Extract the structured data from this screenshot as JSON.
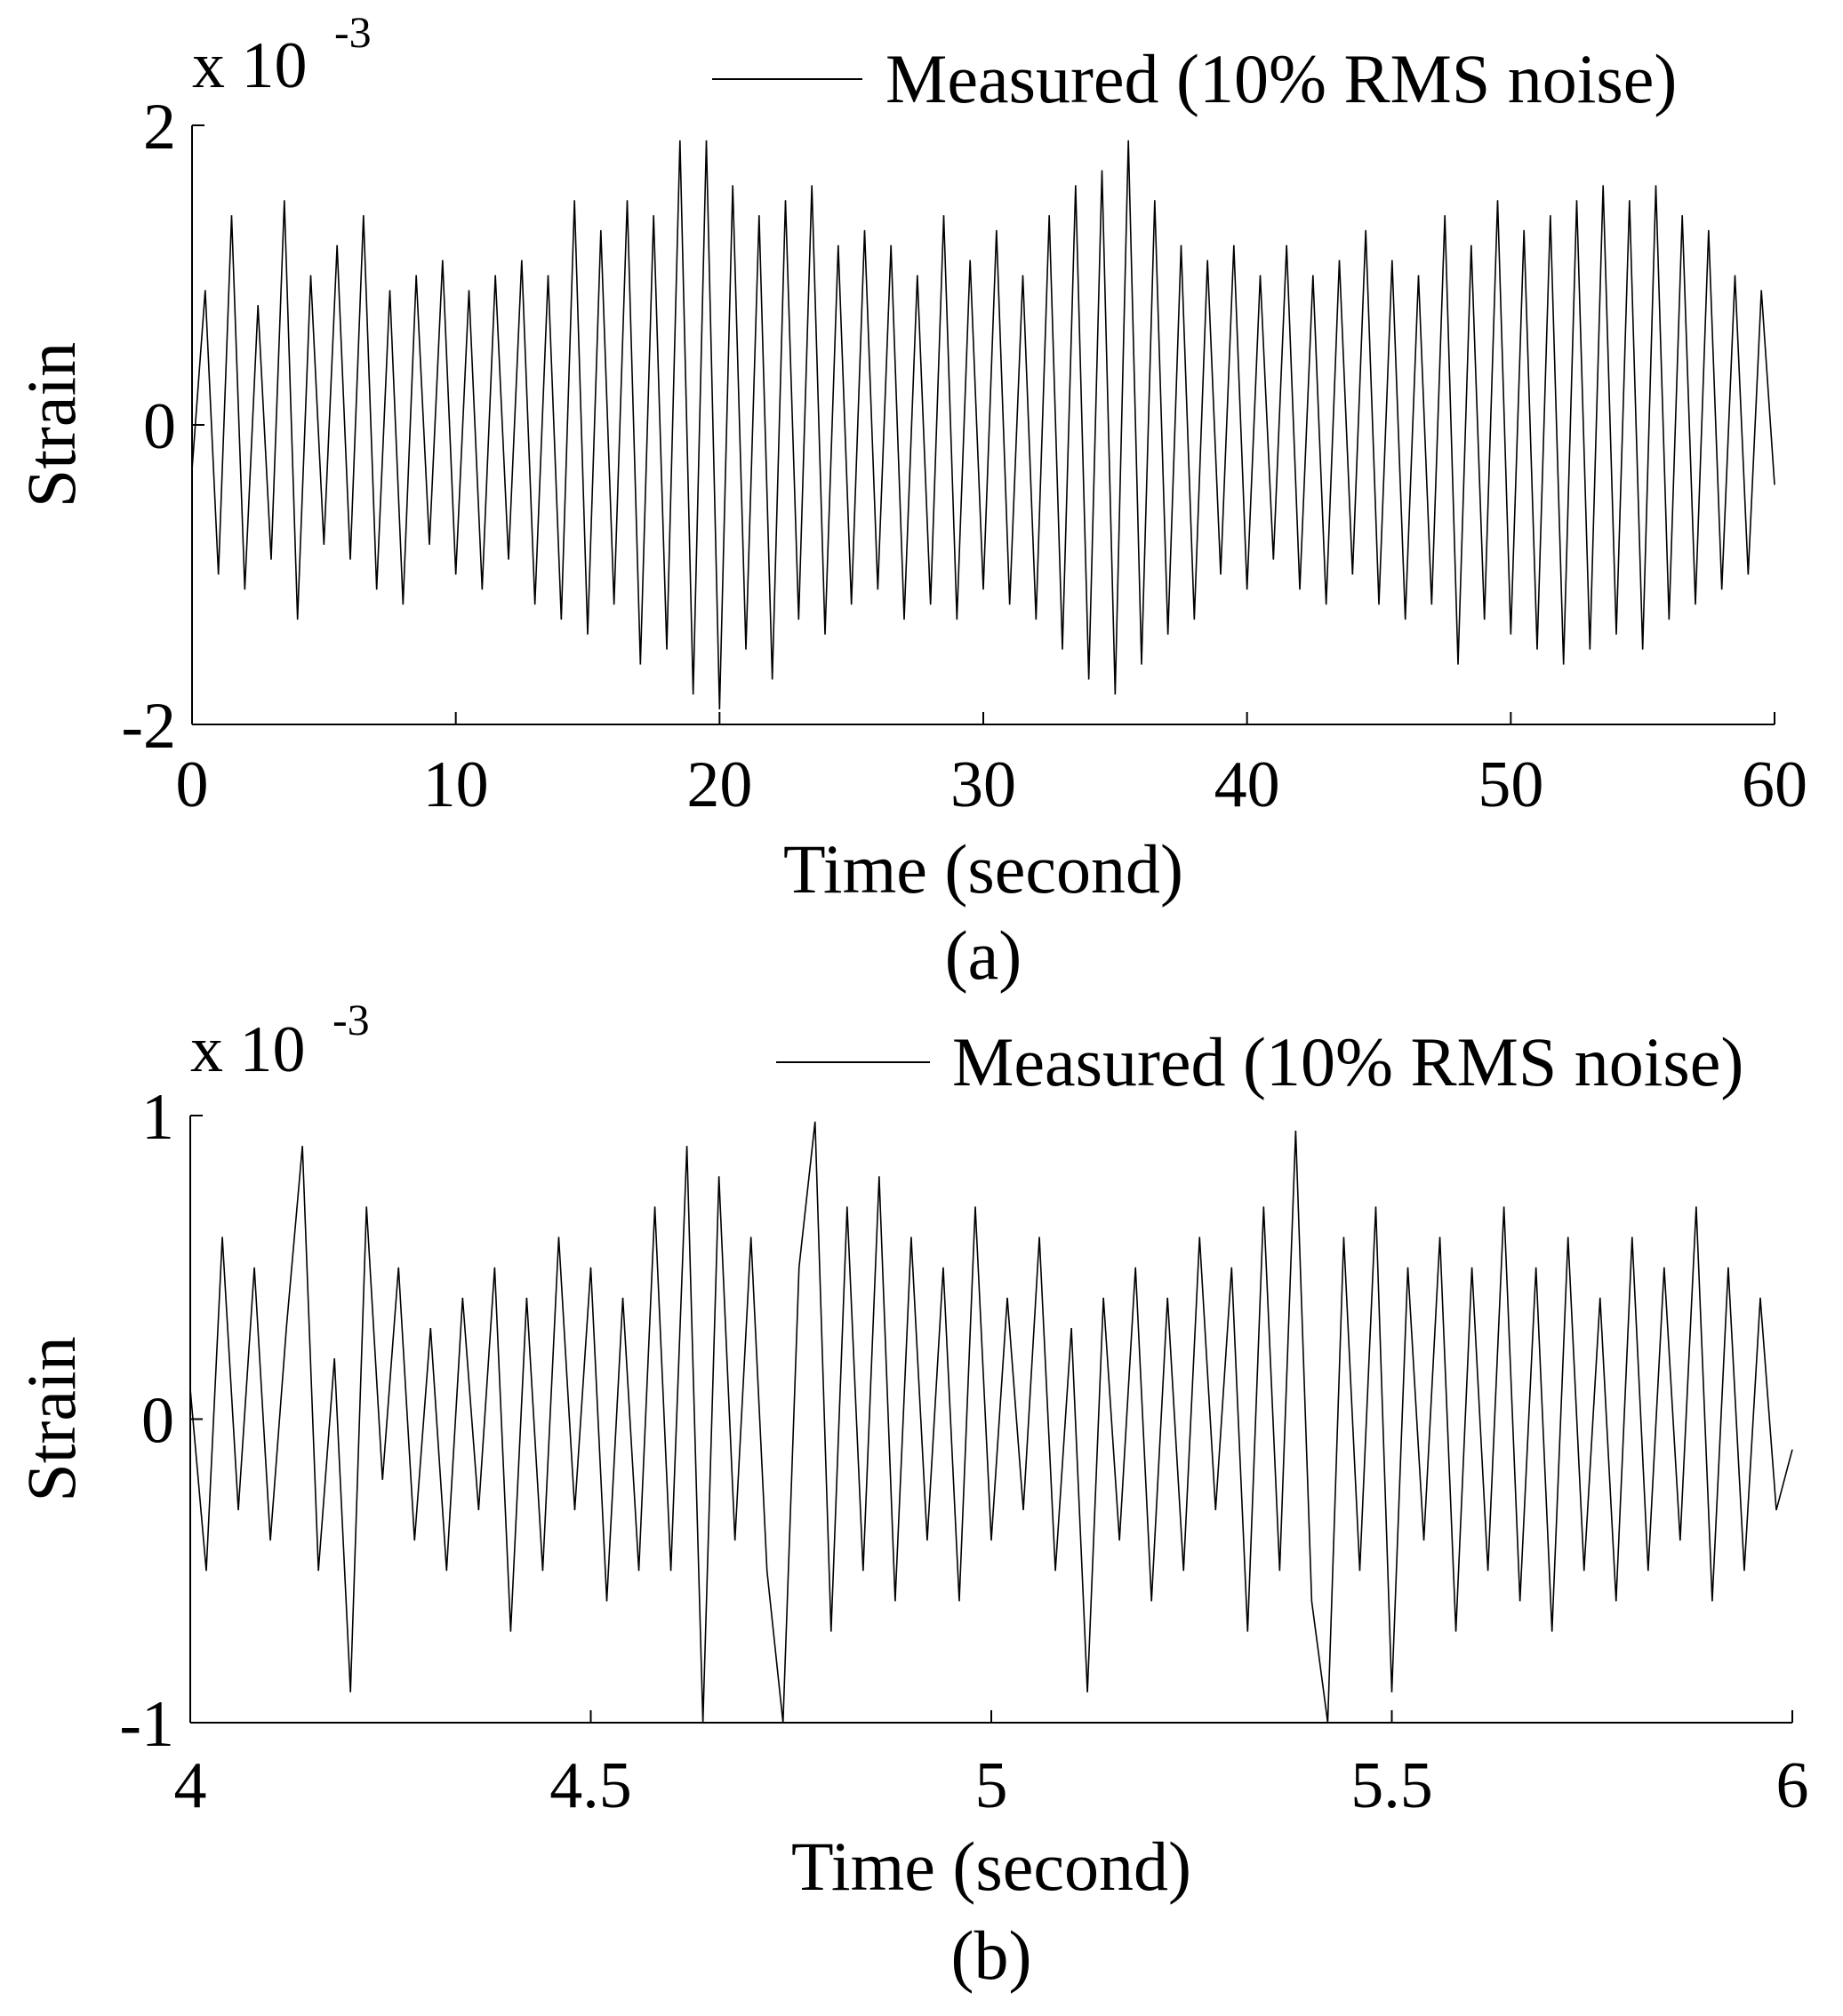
{
  "chart_data": [
    {
      "type": "line",
      "caption": "(a)",
      "xlabel": "Time (second)",
      "ylabel": "Strain",
      "multiplier": "x 10",
      "multiplier_exponent": "-3",
      "legend": "top-right",
      "xlim": [
        0,
        60
      ],
      "ylim": [
        -2,
        2
      ],
      "xticks": [
        0,
        10,
        20,
        30,
        40,
        50,
        60
      ],
      "yticks": [
        -2,
        0,
        2
      ],
      "x": [
        0,
        0.5,
        1,
        1.5,
        2,
        2.5,
        3,
        3.5,
        4,
        4.5,
        5,
        5.5,
        6,
        6.5,
        7,
        7.5,
        8,
        8.5,
        9,
        9.5,
        10,
        10.5,
        11,
        11.5,
        12,
        12.5,
        13,
        13.5,
        14,
        14.5,
        15,
        15.5,
        16,
        16.5,
        17,
        17.5,
        18,
        18.5,
        19,
        19.5,
        20,
        20.5,
        21,
        21.5,
        22,
        22.5,
        23,
        23.5,
        24,
        24.5,
        25,
        25.5,
        26,
        26.5,
        27,
        27.5,
        28,
        28.5,
        29,
        29.5,
        30,
        30.5,
        31,
        31.5,
        32,
        32.5,
        33,
        33.5,
        34,
        34.5,
        35,
        35.5,
        36,
        36.5,
        37,
        37.5,
        38,
        38.5,
        39,
        39.5,
        40,
        40.5,
        41,
        41.5,
        42,
        42.5,
        43,
        43.5,
        44,
        44.5,
        45,
        45.5,
        46,
        46.5,
        47,
        47.5,
        48,
        48.5,
        49,
        49.5,
        50,
        50.5,
        51,
        51.5,
        52,
        52.5,
        53,
        53.5,
        54,
        54.5,
        55,
        55.5,
        56,
        56.5,
        57,
        57.5,
        58,
        58.5,
        59,
        59.5,
        60
      ],
      "series": [
        {
          "name": "Measured (10% RMS noise)",
          "color": "#000000",
          "values": [
            -0.3,
            0.9,
            -1.0,
            1.4,
            -1.1,
            0.8,
            -0.9,
            1.5,
            -1.3,
            1.0,
            -0.8,
            1.2,
            -0.9,
            1.4,
            -1.1,
            0.9,
            -1.2,
            1.0,
            -0.8,
            1.1,
            -1.0,
            0.9,
            -1.1,
            1.0,
            -0.9,
            1.1,
            -1.2,
            1.0,
            -1.3,
            1.5,
            -1.4,
            1.3,
            -1.2,
            1.5,
            -1.6,
            1.4,
            -1.5,
            1.9,
            -1.8,
            1.9,
            -1.9,
            1.6,
            -1.5,
            1.4,
            -1.7,
            1.5,
            -1.3,
            1.6,
            -1.4,
            1.2,
            -1.2,
            1.3,
            -1.1,
            1.2,
            -1.3,
            1.0,
            -1.2,
            1.4,
            -1.3,
            1.1,
            -1.1,
            1.3,
            -1.2,
            1.0,
            -1.3,
            1.4,
            -1.5,
            1.6,
            -1.7,
            1.7,
            -1.8,
            1.9,
            -1.6,
            1.5,
            -1.4,
            1.2,
            -1.3,
            1.1,
            -1.0,
            1.2,
            -1.1,
            1.0,
            -0.9,
            1.2,
            -1.1,
            1.0,
            -1.2,
            1.1,
            -1.0,
            1.3,
            -1.2,
            1.1,
            -1.3,
            1.0,
            -1.2,
            1.4,
            -1.6,
            1.2,
            -1.3,
            1.5,
            -1.4,
            1.3,
            -1.5,
            1.4,
            -1.6,
            1.5,
            -1.5,
            1.6,
            -1.4,
            1.5,
            -1.5,
            1.6,
            -1.3,
            1.4,
            -1.2,
            1.3,
            -1.1,
            1.0,
            -1.0,
            0.9,
            -0.4
          ]
        }
      ]
    },
    {
      "type": "line",
      "caption": "(b)",
      "xlabel": "Time (second)",
      "ylabel": "Strain",
      "multiplier": "x 10",
      "multiplier_exponent": "-3",
      "legend": "top-right",
      "xlim": [
        4,
        6
      ],
      "ylim": [
        -1,
        1
      ],
      "xticks": [
        4,
        4.5,
        5,
        5.5,
        6
      ],
      "yticks": [
        -1,
        0,
        1
      ],
      "x": [
        4,
        4.02,
        4.04,
        4.06,
        4.08,
        4.1,
        4.12,
        4.14,
        4.16,
        4.18,
        4.2,
        4.22,
        4.24,
        4.26,
        4.28,
        4.3,
        4.32,
        4.34,
        4.36,
        4.38,
        4.4,
        4.42,
        4.44,
        4.46,
        4.48,
        4.5,
        4.52,
        4.54,
        4.56,
        4.58,
        4.6,
        4.62,
        4.64,
        4.66,
        4.68,
        4.7,
        4.72,
        4.74,
        4.76,
        4.78,
        4.8,
        4.82,
        4.84,
        4.86,
        4.88,
        4.9,
        4.92,
        4.94,
        4.96,
        4.98,
        5,
        5.02,
        5.04,
        5.06,
        5.08,
        5.1,
        5.12,
        5.14,
        5.16,
        5.18,
        5.2,
        5.22,
        5.24,
        5.26,
        5.28,
        5.3,
        5.32,
        5.34,
        5.36,
        5.38,
        5.4,
        5.42,
        5.44,
        5.46,
        5.48,
        5.5,
        5.52,
        5.54,
        5.56,
        5.58,
        5.6,
        5.62,
        5.64,
        5.66,
        5.68,
        5.7,
        5.72,
        5.74,
        5.76,
        5.78,
        5.8,
        5.82,
        5.84,
        5.86,
        5.88,
        5.9,
        5.92,
        5.94,
        5.96,
        5.98,
        6
      ],
      "series": [
        {
          "name": "Measured (10% RMS noise)",
          "color": "#000000",
          "values": [
            0.1,
            -0.5,
            0.6,
            -0.3,
            0.5,
            -0.4,
            0.3,
            0.9,
            -0.5,
            0.2,
            -0.9,
            0.7,
            -0.2,
            0.5,
            -0.4,
            0.3,
            -0.5,
            0.4,
            -0.3,
            0.5,
            -0.7,
            0.4,
            -0.5,
            0.6,
            -0.3,
            0.5,
            -0.6,
            0.4,
            -0.5,
            0.7,
            -0.5,
            0.9,
            -1.0,
            0.8,
            -0.4,
            0.6,
            -0.5,
            -1.0,
            0.5,
            0.98,
            -0.7,
            0.7,
            -0.5,
            0.8,
            -0.6,
            0.6,
            -0.4,
            0.5,
            -0.6,
            0.7,
            -0.4,
            0.4,
            -0.3,
            0.6,
            -0.5,
            0.3,
            -0.9,
            0.4,
            -0.4,
            0.5,
            -0.6,
            0.4,
            -0.5,
            0.6,
            -0.3,
            0.5,
            -0.7,
            0.7,
            -0.5,
            0.95,
            -0.6,
            -1.0,
            0.6,
            -0.5,
            0.7,
            -0.9,
            0.5,
            -0.4,
            0.6,
            -0.7,
            0.5,
            -0.5,
            0.7,
            -0.6,
            0.5,
            -0.7,
            0.6,
            -0.5,
            0.4,
            -0.6,
            0.6,
            -0.5,
            0.5,
            -0.4,
            0.7,
            -0.6,
            0.5,
            -0.5,
            0.4,
            -0.3,
            -0.1
          ]
        }
      ]
    }
  ]
}
